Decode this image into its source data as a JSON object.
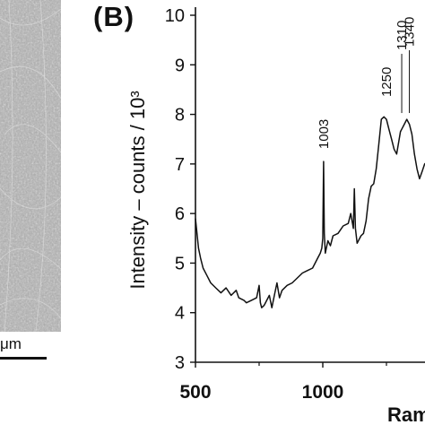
{
  "panel_a": {
    "scale_bar_label": "μm",
    "image_description_icon": "sem-micrograph-texture"
  },
  "panel_b": {
    "panel_label": "(B)"
  },
  "chart_data": {
    "type": "line",
    "title": "",
    "xlabel": "Rama",
    "ylabel": "Intensity – counts / 10³",
    "xlim": [
      500,
      1460
    ],
    "ylim": [
      3,
      10.2
    ],
    "x_ticks": [
      500,
      1000
    ],
    "y_ticks": [
      3,
      4,
      5,
      6,
      7,
      8,
      9,
      10
    ],
    "grid": false,
    "annotations": [
      {
        "text": "1003",
        "x": 1003,
        "y": 7.05
      },
      {
        "text": "1250",
        "x": 1250,
        "y": 8.1
      },
      {
        "text": "1310",
        "x": 1310,
        "y": 8.1
      },
      {
        "text": "1340",
        "x": 1340,
        "y": 8.1
      }
    ],
    "series": [
      {
        "x": [
          500,
          506,
          512,
          520,
          530,
          545,
          560,
          580,
          600,
          620,
          640,
          660,
          670,
          690,
          700,
          720,
          740,
          750,
          755,
          760,
          770,
          790,
          800,
          810,
          820,
          830,
          840,
          850,
          860,
          880,
          900,
          920,
          940,
          960,
          970,
          980,
          990,
          996,
          1000,
          1003,
          1006,
          1010,
          1020,
          1030,
          1040,
          1060,
          1080,
          1100,
          1110,
          1120,
          1124,
          1128,
          1135,
          1150,
          1160,
          1170,
          1180,
          1190,
          1200,
          1210,
          1220,
          1230,
          1240,
          1250,
          1260,
          1270,
          1280,
          1290,
          1300,
          1305,
          1310,
          1320,
          1330,
          1340,
          1350,
          1360,
          1370,
          1380,
          1390,
          1400,
          1420,
          1440,
          1460
        ],
        "values": [
          5.9,
          5.6,
          5.3,
          5.1,
          4.9,
          4.75,
          4.6,
          4.5,
          4.4,
          4.5,
          4.35,
          4.45,
          4.3,
          4.25,
          4.2,
          4.25,
          4.3,
          4.55,
          4.2,
          4.1,
          4.15,
          4.35,
          4.1,
          4.35,
          4.6,
          4.3,
          4.45,
          4.5,
          4.55,
          4.6,
          4.7,
          4.8,
          4.85,
          4.9,
          5.0,
          5.1,
          5.2,
          5.3,
          5.5,
          7.05,
          5.6,
          5.2,
          5.45,
          5.35,
          5.55,
          5.6,
          5.75,
          5.8,
          6.0,
          5.7,
          6.5,
          5.7,
          5.4,
          5.55,
          5.6,
          5.85,
          6.3,
          6.55,
          6.6,
          6.9,
          7.4,
          7.9,
          7.95,
          7.9,
          7.7,
          7.5,
          7.3,
          7.2,
          7.5,
          7.65,
          7.7,
          7.8,
          7.9,
          7.8,
          7.6,
          7.2,
          6.9,
          6.7,
          6.85,
          7.0,
          7.1,
          7.15,
          7.2
        ]
      }
    ]
  }
}
